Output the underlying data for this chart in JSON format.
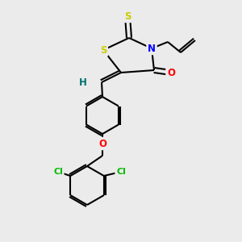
{
  "bg_color": "#ebebeb",
  "atom_colors": {
    "S": "#cccc00",
    "N": "#0000ff",
    "O": "#ff0000",
    "Cl": "#00bb00",
    "C": "#000000",
    "H": "#007070"
  },
  "bond_color": "#000000"
}
